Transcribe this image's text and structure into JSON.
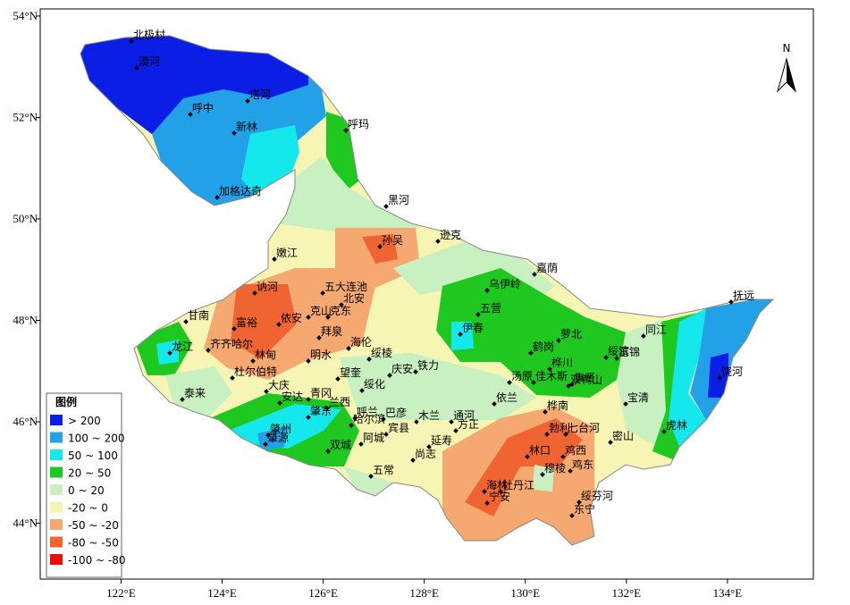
{
  "map": {
    "xlim": [
      120.4,
      135.7
    ],
    "ylim": [
      42.9,
      54.14
    ],
    "lon_ticks": [
      {
        "value": 122,
        "label": "122°E"
      },
      {
        "value": 124,
        "label": "124°E"
      },
      {
        "value": 126,
        "label": "126°E"
      },
      {
        "value": 128,
        "label": "128°E"
      },
      {
        "value": 130,
        "label": "130°E"
      },
      {
        "value": 132,
        "label": "132°E"
      },
      {
        "value": 134,
        "label": "134°E"
      }
    ],
    "lat_ticks": [
      {
        "value": 44,
        "label": "44°N"
      },
      {
        "value": 46,
        "label": "46°N"
      },
      {
        "value": 48,
        "label": "48°N"
      },
      {
        "value": 50,
        "label": "50°N"
      },
      {
        "value": 52,
        "label": "52°N"
      },
      {
        "value": 54,
        "label": "54°N"
      }
    ],
    "north": "N",
    "legend": {
      "title": "图例",
      "items": [
        {
          "label": "> 200",
          "color": "#0a1ee6"
        },
        {
          "label": "100 ~ 200",
          "color": "#22a0e8"
        },
        {
          "label": "50 ~ 100",
          "color": "#14e8ec"
        },
        {
          "label": "20 ~ 50",
          "color": "#1ec81e"
        },
        {
          "label": "0 ~ 20",
          "color": "#c8f0c0"
        },
        {
          "label": "-20 ~ 0",
          "color": "#f7f5b4"
        },
        {
          "label": "-50 ~ -20",
          "color": "#f5a870"
        },
        {
          "label": "-80 ~ -50",
          "color": "#f06432"
        },
        {
          "label": "-100 ~ -80",
          "color": "#f00a0a"
        }
      ]
    },
    "stations": [
      "北极村",
      "漠河",
      "塔河",
      "呼中",
      "新林",
      "呼玛",
      "加格达奇",
      "黑河",
      "逊克",
      "孙吴",
      "嫩江",
      "嘉荫",
      "乌伊岭",
      "讷河",
      "五大连池",
      "北安",
      "五营",
      "甘南",
      "克山",
      "克东",
      "富裕",
      "依安",
      "伊春",
      "拜泉",
      "萝北",
      "海伦",
      "龙江",
      "齐齐哈尔",
      "林甸",
      "明水",
      "绥棱",
      "鹤岗",
      "同江",
      "绥滨",
      "富锦",
      "杜尔伯特",
      "望奎",
      "庆安",
      "铁力",
      "桦川",
      "汤原",
      "佳木斯",
      "双鸭山",
      "集贤",
      "抚远",
      "饶河",
      "宝清",
      "大庆",
      "青冈",
      "绥化",
      "泰来",
      "安达",
      "兰西",
      "依兰",
      "桦南",
      "肇东",
      "呼兰",
      "巴彦",
      "木兰",
      "通河",
      "勃利",
      "七台河",
      "虎林",
      "哈尔滨",
      "宾县",
      "方正",
      "肇州",
      "密山",
      "肇源",
      "阿城",
      "延寿",
      "林口",
      "鸡西",
      "双城",
      "尚志",
      "鸡东",
      "穆棱",
      "五常",
      "海林",
      "牡丹江",
      "绥芬河",
      "宁安",
      "东宁"
    ]
  }
}
